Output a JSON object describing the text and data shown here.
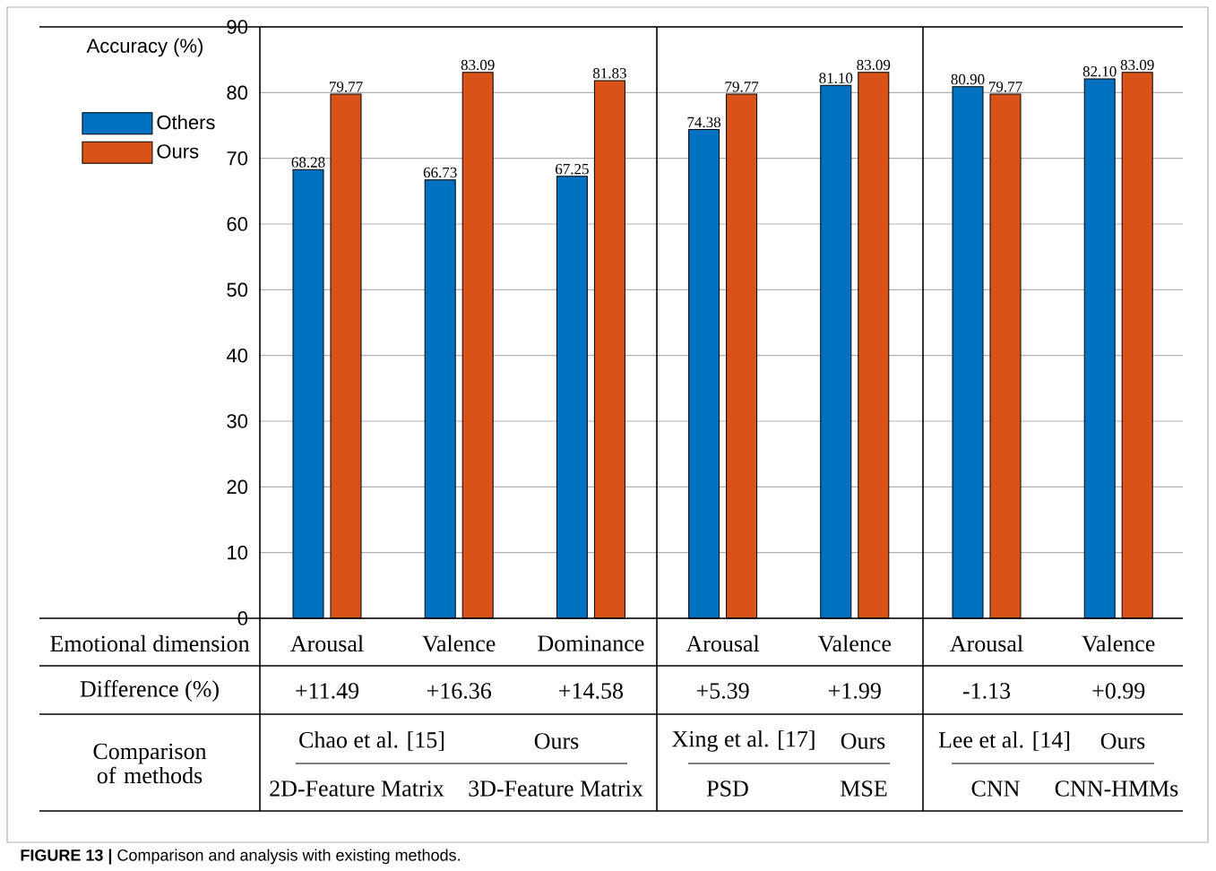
{
  "chart_data": {
    "type": "bar",
    "ylabel": "Accuracy (%)",
    "categories": [
      "Arousal",
      "Valence",
      "Dominance",
      "Arousal",
      "Valence",
      "Arousal",
      "Valence"
    ],
    "series": [
      {
        "name": "Others",
        "color": "#0070c0",
        "values": [
          68.28,
          66.73,
          67.25,
          74.38,
          81.1,
          80.9,
          82.1
        ],
        "value_labels": [
          "68.28",
          "66.73",
          "67.25",
          "74.38",
          "81.10",
          "80.90",
          "82.10"
        ]
      },
      {
        "name": "Ours",
        "color": "#d95319",
        "values": [
          79.77,
          83.09,
          81.83,
          79.77,
          83.09,
          79.77,
          83.09
        ],
        "value_labels": [
          "79.77",
          "83.09",
          "81.83",
          "79.77",
          "83.09",
          "79.77",
          "83.09"
        ]
      }
    ],
    "ylim": [
      0,
      90
    ],
    "yticks": [
      0,
      10,
      20,
      30,
      40,
      50,
      60,
      70,
      80,
      90
    ],
    "grid": "y",
    "legend": "top left",
    "annotations": [
      "Emotional dimension",
      "Difference (%)",
      "+11.49",
      "+16.36",
      "+14.58",
      "+5.39",
      "+1.99",
      "-1.13",
      "+0.99",
      "Comparison of methods",
      "Chao et al. [15]",
      "Ours",
      "2D-Feature Matrix",
      "3D-Feature Matrix",
      "Xing et al. [17]",
      "Ours",
      "PSD",
      "MSE",
      "Lee et al. [14]",
      "Ours",
      "CNN",
      "CNN-HMMs",
      "**FIGURE 13 |** Comparison and analysis with existing methods."
    ]
  }
}
